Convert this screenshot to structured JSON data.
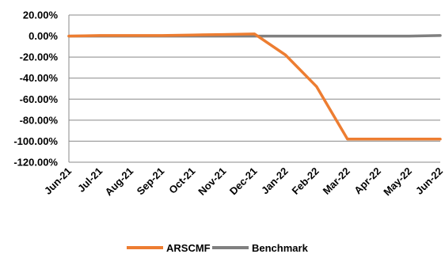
{
  "chart_data": {
    "type": "line",
    "title": "",
    "xlabel": "",
    "ylabel": "",
    "categories": [
      "Jun-21",
      "Jul-21",
      "Aug-21",
      "Sep-21",
      "Oct-21",
      "Nov-21",
      "Dec-21",
      "Jan-22",
      "Feb-22",
      "Mar-22",
      "Apr-22",
      "May-22",
      "Jun-22"
    ],
    "ylim": [
      -120,
      20
    ],
    "y_ticks": [
      20,
      0,
      -20,
      -40,
      -60,
      -80,
      -100,
      -120
    ],
    "y_tick_labels": [
      "20.00%",
      "0.00%",
      "-20.00%",
      "-40.00%",
      "-60.00%",
      "-80.00%",
      "-100.00%",
      "-120.00%"
    ],
    "grid": true,
    "legend_position": "bottom",
    "series": [
      {
        "name": "ARSCMF",
        "color": "#ED7D31",
        "values": [
          0,
          0.5,
          0.5,
          0.5,
          1,
          1.5,
          2,
          -18,
          -48,
          -98,
          -98,
          -98,
          -98
        ]
      },
      {
        "name": "Benchmark",
        "color": "#808080",
        "values": [
          0,
          0,
          0,
          0,
          0,
          0,
          0,
          0,
          0,
          0,
          0,
          0,
          0.5
        ]
      }
    ]
  }
}
